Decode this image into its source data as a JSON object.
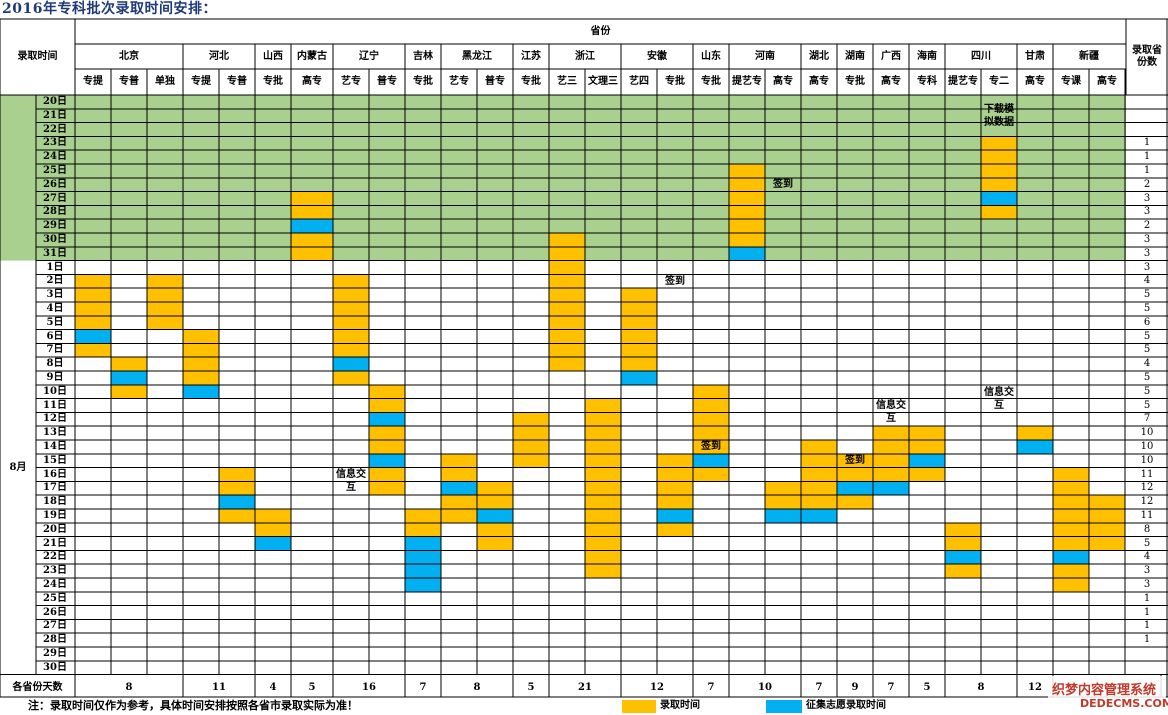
{
  "title": "2016年专科批次录取时间安排：",
  "header": {
    "province_group": "省份",
    "admit_time": "录取时间",
    "count_col": "录取省份数"
  },
  "provinces": [
    {
      "name": "北京",
      "subs": [
        "专提",
        "专普",
        "单独"
      ],
      "days": "8"
    },
    {
      "name": "河北",
      "subs": [
        "专提",
        "专普"
      ],
      "days": "11"
    },
    {
      "name": "山西",
      "subs": [
        "专批"
      ],
      "days": "4"
    },
    {
      "name": "内蒙古",
      "subs": [
        "高专"
      ],
      "days": "5"
    },
    {
      "name": "辽宁",
      "subs": [
        "艺专",
        "普专"
      ],
      "days": "16"
    },
    {
      "name": "吉林",
      "subs": [
        "专批"
      ],
      "days": "7"
    },
    {
      "name": "黑龙江",
      "subs": [
        "艺专",
        "普专"
      ],
      "days": "8"
    },
    {
      "name": "江苏",
      "subs": [
        "专批"
      ],
      "days": "5"
    },
    {
      "name": "浙江",
      "subs": [
        "艺三",
        "文理三"
      ],
      "days": "21"
    },
    {
      "name": "安徽",
      "subs": [
        "艺四",
        "专批"
      ],
      "days": "12"
    },
    {
      "name": "山东",
      "subs": [
        "专批"
      ],
      "days": "7"
    },
    {
      "name": "河南",
      "subs": [
        "提艺专",
        "高专"
      ],
      "days": "10"
    },
    {
      "name": "湖北",
      "subs": [
        "高专"
      ],
      "days": "7"
    },
    {
      "name": "湖南",
      "subs": [
        "专批"
      ],
      "days": "9"
    },
    {
      "name": "广西",
      "subs": [
        "高专"
      ],
      "days": "7"
    },
    {
      "name": "海南",
      "subs": [
        "专科"
      ],
      "days": "5"
    },
    {
      "name": "四川",
      "subs": [
        "提艺专",
        "专二"
      ],
      "days": "8"
    },
    {
      "name": "甘肃",
      "subs": [
        "高专"
      ],
      "days": "12"
    },
    {
      "name": "新疆",
      "subs": [
        "专课",
        "高专"
      ],
      "days": ""
    }
  ],
  "july_days": [
    "20日",
    "21日",
    "22日",
    "23日",
    "24日",
    "25日",
    "26日",
    "27日",
    "28日",
    "29日",
    "30日",
    "31日"
  ],
  "august_label": "8月",
  "august_days": [
    "1日",
    "2日",
    "3日",
    "4日",
    "5日",
    "6日",
    "7日",
    "8日",
    "9日",
    "10日",
    "11日",
    "12日",
    "13日",
    "14日",
    "15日",
    "16日",
    "17日",
    "18日",
    "19日",
    "20日",
    "21日",
    "22日",
    "23日",
    "24日",
    "25日",
    "26日",
    "27日",
    "28日",
    "29日",
    "30日"
  ],
  "counts": [
    "",
    "",
    "",
    "1",
    "1",
    "1",
    "2",
    "3",
    "3",
    "2",
    "3",
    "3",
    "3",
    "4",
    "5",
    "5",
    "6",
    "5",
    "5",
    "4",
    "5",
    "5",
    "5",
    "7",
    "10",
    "10",
    "10",
    "11",
    "12",
    "12",
    "11",
    "8",
    "5",
    "4",
    "3",
    "3",
    "1",
    "1",
    "1",
    "1"
  ],
  "days_row_label": "各省份天数",
  "schedule": [
    {
      "col": 0,
      "segs": [
        [
          13,
          16,
          "o"
        ],
        [
          17,
          17,
          "b"
        ],
        [
          18,
          18,
          "o"
        ]
      ]
    },
    {
      "col": 1,
      "segs": [
        [
          19,
          19,
          "o"
        ],
        [
          20,
          20,
          "b"
        ],
        [
          21,
          21,
          "o"
        ]
      ]
    },
    {
      "col": 2,
      "segs": [
        [
          13,
          16,
          "o"
        ]
      ]
    },
    {
      "col": 3,
      "segs": [
        [
          17,
          20,
          "o"
        ],
        [
          21,
          21,
          "b"
        ]
      ]
    },
    {
      "col": 4,
      "segs": [
        [
          27,
          28,
          "o"
        ],
        [
          29,
          29,
          "b"
        ],
        [
          30,
          30,
          "o"
        ]
      ]
    },
    {
      "col": 5,
      "segs": [
        [
          30,
          31,
          "o"
        ],
        [
          32,
          32,
          "b"
        ]
      ]
    },
    {
      "col": 6,
      "segs": [
        [
          7,
          8,
          "o"
        ],
        [
          9,
          9,
          "b"
        ],
        [
          10,
          11,
          "o"
        ]
      ]
    },
    {
      "col": 7,
      "segs": [
        [
          13,
          18,
          "o"
        ],
        [
          19,
          19,
          "b"
        ],
        [
          20,
          20,
          "o"
        ]
      ]
    },
    {
      "col": 8,
      "segs": [
        [
          21,
          22,
          "o"
        ],
        [
          23,
          23,
          "b"
        ],
        [
          24,
          25,
          "o"
        ],
        [
          26,
          26,
          "b"
        ],
        [
          27,
          28,
          "o"
        ]
      ]
    },
    {
      "col": 9,
      "segs": [
        [
          30,
          31,
          "o"
        ],
        [
          32,
          35,
          "b"
        ]
      ]
    },
    {
      "col": 10,
      "segs": [
        [
          26,
          27,
          "o"
        ],
        [
          28,
          28,
          "b"
        ],
        [
          29,
          30,
          "o"
        ]
      ]
    },
    {
      "col": 11,
      "segs": [
        [
          28,
          29,
          "o"
        ],
        [
          30,
          30,
          "b"
        ],
        [
          31,
          32,
          "o"
        ]
      ]
    },
    {
      "col": 12,
      "segs": [
        [
          23,
          26,
          "o"
        ]
      ]
    },
    {
      "col": 13,
      "segs": [
        [
          10,
          19,
          "o"
        ]
      ]
    },
    {
      "col": 14,
      "segs": [
        [
          22,
          25,
          "o"
        ],
        [
          26,
          34,
          "o"
        ]
      ]
    },
    {
      "col": 15,
      "segs": [
        [
          14,
          19,
          "o"
        ],
        [
          20,
          20,
          "b"
        ]
      ]
    },
    {
      "col": 16,
      "segs": [
        [
          26,
          29,
          "o"
        ],
        [
          30,
          30,
          "b"
        ],
        [
          31,
          31,
          "o"
        ]
      ]
    },
    {
      "col": 17,
      "segs": [
        [
          21,
          25,
          "o"
        ],
        [
          26,
          26,
          "b"
        ],
        [
          27,
          27,
          "o"
        ]
      ]
    },
    {
      "col": 18,
      "segs": [
        [
          5,
          6,
          "o"
        ],
        [
          7,
          10,
          "o"
        ],
        [
          11,
          11,
          "b"
        ]
      ]
    },
    {
      "col": 19,
      "segs": [
        [
          28,
          29,
          "o"
        ],
        [
          30,
          30,
          "b"
        ]
      ]
    },
    {
      "col": 20,
      "segs": [
        [
          25,
          29,
          "o"
        ],
        [
          30,
          30,
          "b"
        ]
      ]
    },
    {
      "col": 21,
      "segs": [
        [
          26,
          27,
          "o"
        ],
        [
          28,
          28,
          "b"
        ],
        [
          29,
          29,
          "o"
        ]
      ]
    },
    {
      "col": 22,
      "segs": [
        [
          24,
          27,
          "o"
        ],
        [
          28,
          28,
          "b"
        ]
      ]
    },
    {
      "col": 23,
      "segs": [
        [
          24,
          25,
          "o"
        ],
        [
          26,
          26,
          "b"
        ],
        [
          27,
          27,
          "o"
        ]
      ]
    },
    {
      "col": 24,
      "segs": [
        [
          31,
          32,
          "o"
        ],
        [
          33,
          33,
          "b"
        ],
        [
          34,
          34,
          "o"
        ]
      ]
    },
    {
      "col": 25,
      "segs": [
        [
          3,
          6,
          "o"
        ],
        [
          7,
          7,
          "b"
        ],
        [
          8,
          8,
          "o"
        ]
      ]
    },
    {
      "col": 26,
      "segs": [
        [
          24,
          24,
          "o"
        ],
        [
          25,
          25,
          "b"
        ]
      ]
    },
    {
      "col": 27,
      "segs": [
        [
          27,
          32,
          "o"
        ],
        [
          33,
          33,
          "b"
        ],
        [
          34,
          35,
          "o"
        ]
      ]
    },
    {
      "col": 28,
      "segs": [
        [
          29,
          32,
          "o"
        ]
      ]
    },
    {
      "col": 29,
      "segs": [
        [
          31,
          37,
          "o"
        ],
        [
          38,
          38,
          "b"
        ],
        [
          39,
          39,
          "o"
        ],
        [
          40,
          40,
          "b"
        ],
        [
          41,
          41,
          "o"
        ]
      ]
    }
  ],
  "notes": [
    {
      "col": 25,
      "row": 0,
      "rows": 3,
      "text": "下载模拟数据"
    },
    {
      "col": 19,
      "row": 6,
      "rows": 1,
      "text": "签到"
    },
    {
      "col": 16,
      "row": 13,
      "rows": 1,
      "text": "签到"
    },
    {
      "col": 22,
      "row": 22,
      "rows": 2,
      "text": "信息交互"
    },
    {
      "col": 25,
      "row": 21,
      "rows": 2,
      "text": "信息交互"
    },
    {
      "col": 17,
      "row": 25,
      "rows": 1,
      "text": "签到"
    },
    {
      "col": 21,
      "row": 26,
      "rows": 1,
      "text": "签到"
    },
    {
      "col": 7,
      "row": 27,
      "rows": 2,
      "text": "信息交互"
    }
  ],
  "colors": {
    "orange": "#ffc000",
    "blue": "#00b0f0",
    "green": "#a9d08e",
    "title": "#1f3a78"
  },
  "footer": {
    "note": "注：录取时间仅作为参考，具体时间安排按照各省市录取实际为准！",
    "legend_admit": "录取时间",
    "legend_collect": "征集志愿录取时间"
  },
  "watermark": {
    "line1": "织梦内容管理系统",
    "line2": "DEDECMS.COM"
  }
}
